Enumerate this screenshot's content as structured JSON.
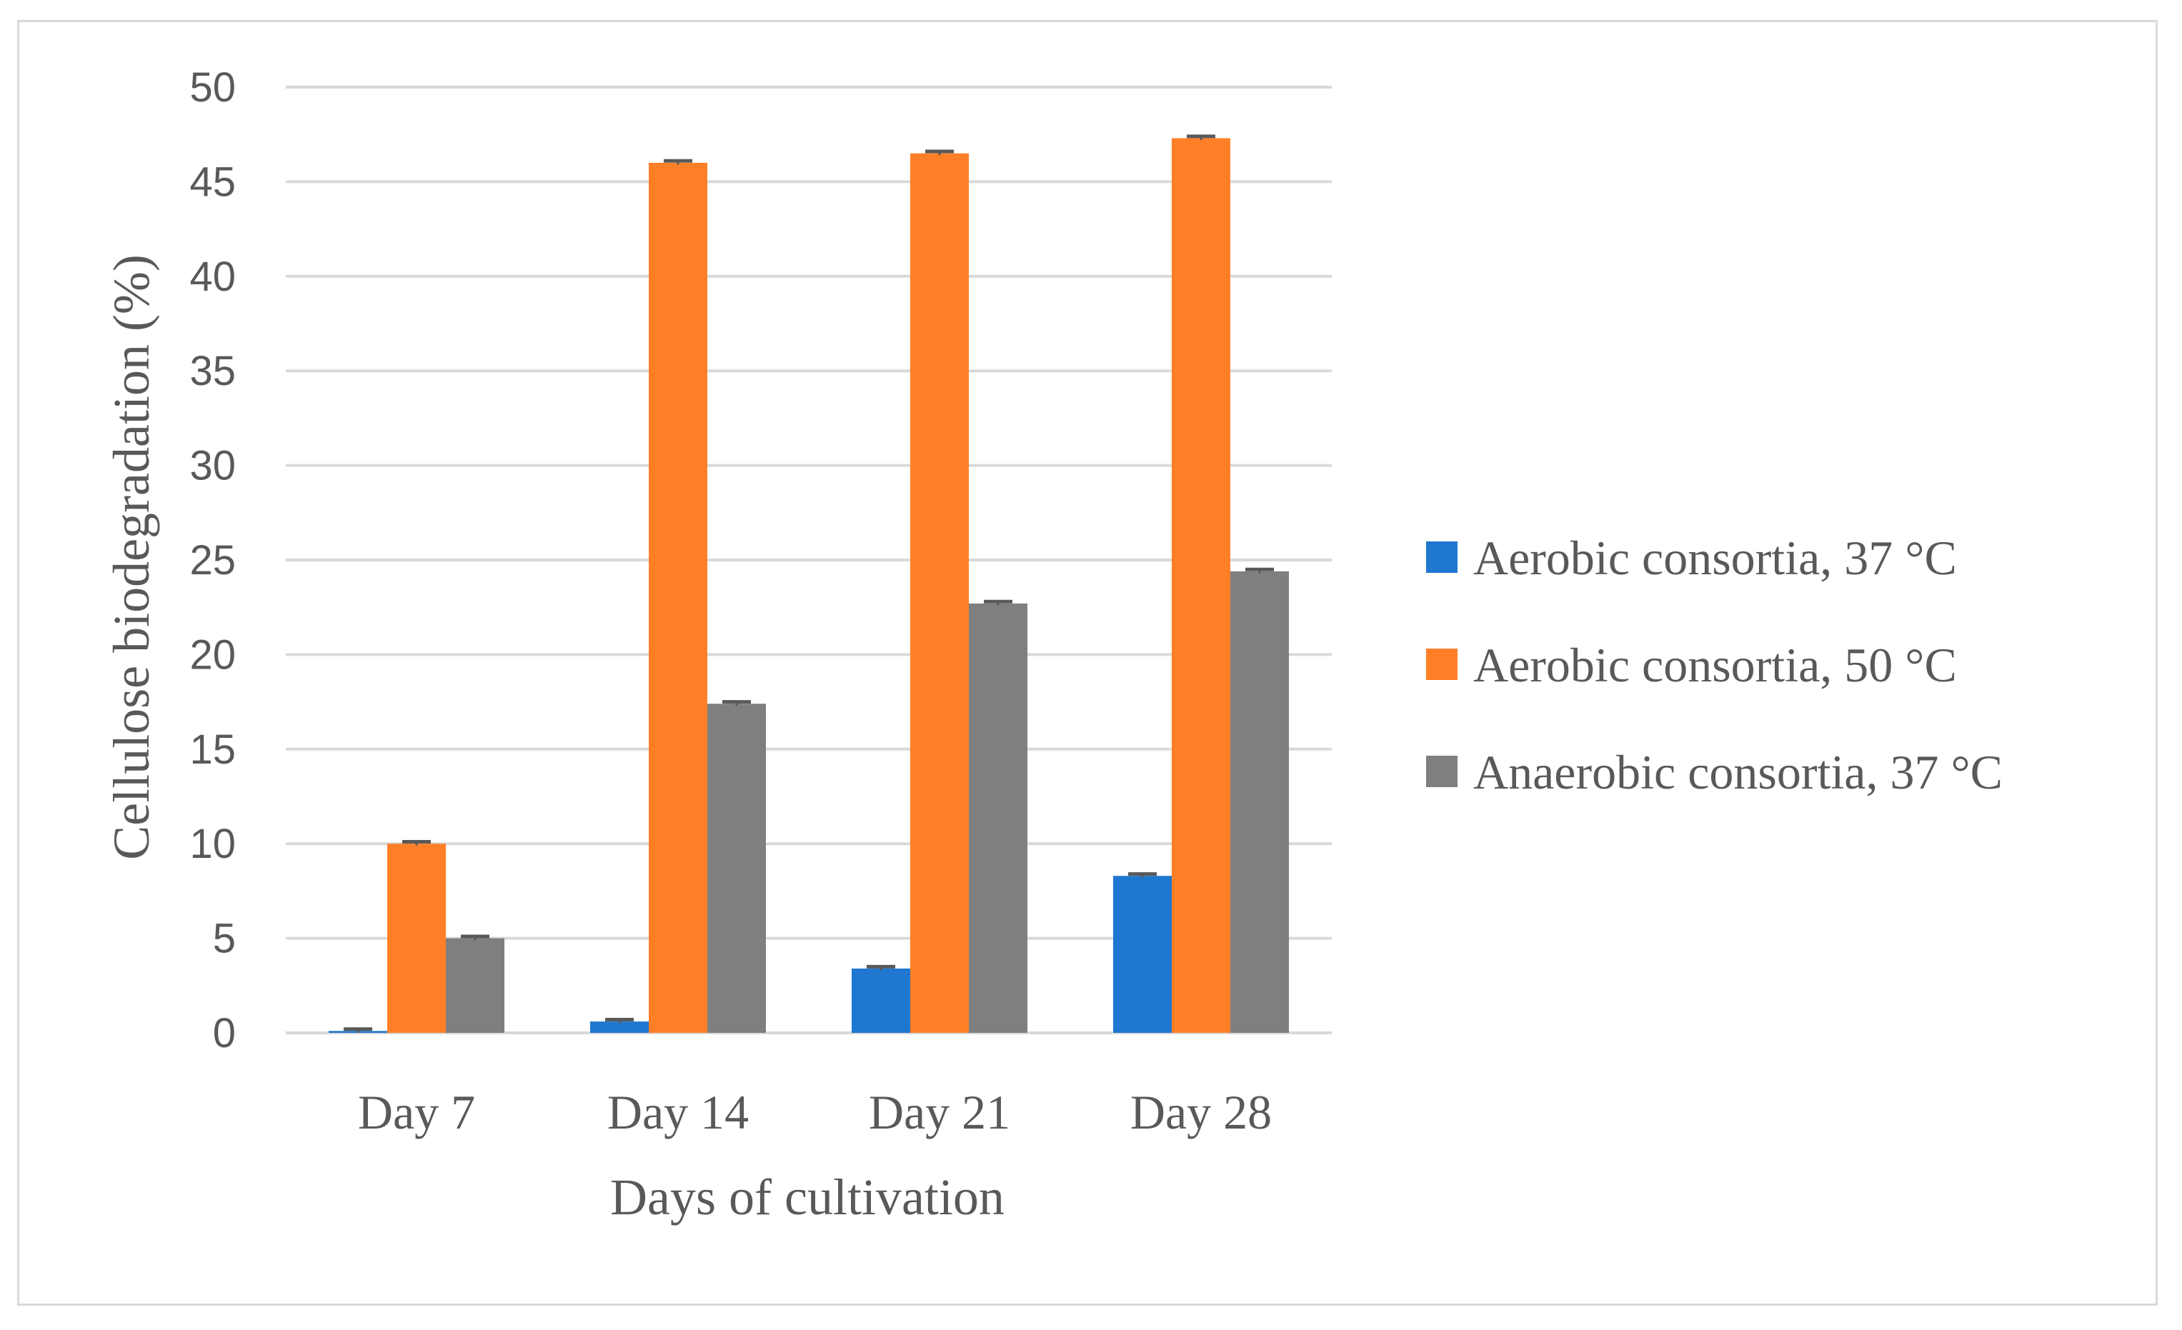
{
  "chart_data": {
    "type": "bar",
    "title": "",
    "categories": [
      "Day 7",
      "Day 14",
      "Day 21",
      "Day 28"
    ],
    "series": [
      {
        "name": "Aerobic consortia, 37 °C",
        "color": "#1f77d0",
        "values": [
          0.1,
          0.6,
          3.4,
          8.3
        ],
        "errors": [
          0.1,
          0.1,
          0.1,
          0.1
        ]
      },
      {
        "name": "Aerobic consortia, 50 °C",
        "color": "#ff7f27",
        "values": [
          10.0,
          46.0,
          46.5,
          47.3
        ],
        "errors": [
          0.1,
          0.1,
          0.1,
          0.1
        ]
      },
      {
        "name": "Anaerobic consortia, 37 °C",
        "color": "#7f7f7f",
        "values": [
          5.0,
          17.4,
          22.7,
          24.4
        ],
        "errors": [
          0.1,
          0.1,
          0.1,
          0.1
        ]
      }
    ],
    "xlabel": "Days of cultivation",
    "ylabel": "Cellulose biodegradation (%)",
    "ylim": [
      0,
      50
    ],
    "yticks": [
      0,
      5,
      10,
      15,
      20,
      25,
      30,
      35,
      40,
      45,
      50
    ],
    "grid": true,
    "legend_position": "right",
    "gridline_color": "#d9d9d9",
    "text_color": "#595959"
  }
}
